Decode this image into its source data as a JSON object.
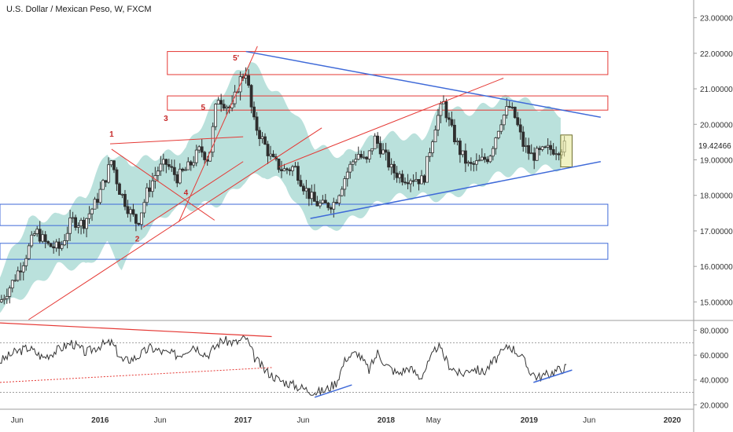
{
  "chart_data": {
    "type": "candlestick",
    "title": "U.S. Dollar / Mexican Peso, W, FXCM",
    "last_price": "19.42466",
    "colors": {
      "up": "#2e2e2e",
      "down": "#2e2e2e",
      "cloud": "#a9d9d3",
      "red_line": "#e53935",
      "blue_line": "#3f6ad8",
      "rsi": "#333333"
    },
    "price_axis": {
      "min": 14.5,
      "max": 23.5,
      "ticks": [
        "15.00000",
        "16.00000",
        "17.00000",
        "18.00000",
        "19.00000",
        "20.00000",
        "21.00000",
        "22.00000",
        "23.00000"
      ],
      "values": [
        15,
        16,
        17,
        18,
        19,
        20,
        21,
        22,
        23
      ]
    },
    "rsi_axis": {
      "min": 17,
      "max": 88,
      "ticks": [
        "20.0000",
        "40.0000",
        "60.0000",
        "80.0000"
      ],
      "values": [
        20,
        40,
        60,
        80
      ],
      "upper": 70,
      "lower": 30
    },
    "time_axis": {
      "labels": [
        "Jun",
        "2016",
        "Jun",
        "2017",
        "Jun",
        "2018",
        "May",
        "2019",
        "Jun",
        "2020"
      ],
      "positions": [
        2015.42,
        2016.0,
        2016.42,
        2017.0,
        2017.42,
        2018.0,
        2018.33,
        2019.0,
        2019.42,
        2020.0
      ],
      "range": [
        2015.3,
        2020.15
      ]
    },
    "price_path": [
      [
        2015.3,
        15.0
      ],
      [
        2015.38,
        15.5
      ],
      [
        2015.47,
        16.2
      ],
      [
        2015.55,
        17.0
      ],
      [
        2015.63,
        16.6
      ],
      [
        2015.72,
        16.5
      ],
      [
        2015.8,
        17.3
      ],
      [
        2015.88,
        17.2
      ],
      [
        2015.97,
        17.8
      ],
      [
        2016.03,
        18.4
      ],
      [
        2016.08,
        19.0
      ],
      [
        2016.13,
        18.2
      ],
      [
        2016.2,
        17.6
      ],
      [
        2016.26,
        17.2
      ],
      [
        2016.33,
        18.1
      ],
      [
        2016.4,
        18.7
      ],
      [
        2016.46,
        18.9
      ],
      [
        2016.54,
        18.5
      ],
      [
        2016.62,
        18.8
      ],
      [
        2016.7,
        19.3
      ],
      [
        2016.76,
        19.0
      ],
      [
        2016.82,
        20.8
      ],
      [
        2016.87,
        20.6
      ],
      [
        2016.92,
        20.4
      ],
      [
        2016.97,
        21.2
      ],
      [
        2017.02,
        21.5
      ],
      [
        2017.07,
        20.1
      ],
      [
        2017.13,
        19.6
      ],
      [
        2017.2,
        19.0
      ],
      [
        2017.28,
        18.7
      ],
      [
        2017.36,
        18.8
      ],
      [
        2017.43,
        18.2
      ],
      [
        2017.5,
        17.8
      ],
      [
        2017.56,
        17.7
      ],
      [
        2017.64,
        17.8
      ],
      [
        2017.72,
        18.6
      ],
      [
        2017.8,
        19.2
      ],
      [
        2017.86,
        18.9
      ],
      [
        2017.92,
        19.6
      ],
      [
        2017.98,
        19.2
      ],
      [
        2018.04,
        18.7
      ],
      [
        2018.12,
        18.5
      ],
      [
        2018.2,
        18.5
      ],
      [
        2018.26,
        18.4
      ],
      [
        2018.3,
        19.2
      ],
      [
        2018.35,
        20.1
      ],
      [
        2018.4,
        20.6
      ],
      [
        2018.45,
        19.9
      ],
      [
        2018.52,
        19.2
      ],
      [
        2018.58,
        18.8
      ],
      [
        2018.64,
        18.9
      ],
      [
        2018.72,
        19.1
      ],
      [
        2018.8,
        20.1
      ],
      [
        2018.86,
        20.5
      ],
      [
        2018.9,
        20.2
      ],
      [
        2018.96,
        19.4
      ],
      [
        2019.02,
        19.1
      ],
      [
        2019.08,
        19.2
      ],
      [
        2019.14,
        19.3
      ],
      [
        2019.2,
        19.3
      ],
      [
        2019.26,
        19.42
      ]
    ],
    "candle_step": 0.0192,
    "volatility_band": {
      "upper": [
        [
          2015.3,
          15.8
        ],
        [
          2015.5,
          17.3
        ],
        [
          2015.7,
          17.4
        ],
        [
          2015.9,
          18.0
        ],
        [
          2016.05,
          19.2
        ],
        [
          2016.2,
          18.9
        ],
        [
          2016.4,
          19.1
        ],
        [
          2016.6,
          19.3
        ],
        [
          2016.8,
          20.6
        ],
        [
          2016.95,
          21.4
        ],
        [
          2017.05,
          21.8
        ],
        [
          2017.2,
          21.0
        ],
        [
          2017.35,
          20.4
        ],
        [
          2017.5,
          19.4
        ],
        [
          2017.7,
          19.1
        ],
        [
          2017.9,
          19.6
        ],
        [
          2018.05,
          19.7
        ],
        [
          2018.25,
          19.6
        ],
        [
          2018.4,
          20.6
        ],
        [
          2018.55,
          20.3
        ],
        [
          2018.75,
          20.6
        ],
        [
          2018.9,
          20.8
        ],
        [
          2019.05,
          20.5
        ],
        [
          2019.22,
          20.3
        ]
      ],
      "lower": [
        [
          2015.3,
          14.8
        ],
        [
          2015.5,
          15.3
        ],
        [
          2015.7,
          16.0
        ],
        [
          2015.9,
          16.0
        ],
        [
          2016.05,
          16.6
        ],
        [
          2016.15,
          16.0
        ],
        [
          2016.3,
          16.9
        ],
        [
          2016.5,
          17.6
        ],
        [
          2016.7,
          17.7
        ],
        [
          2016.85,
          17.8
        ],
        [
          2017.0,
          18.4
        ],
        [
          2017.15,
          18.6
        ],
        [
          2017.3,
          18.3
        ],
        [
          2017.45,
          17.2
        ],
        [
          2017.6,
          17.0
        ],
        [
          2017.8,
          17.4
        ],
        [
          2018.0,
          17.9
        ],
        [
          2018.2,
          18.0
        ],
        [
          2018.4,
          17.9
        ],
        [
          2018.6,
          18.2
        ],
        [
          2018.8,
          18.6
        ],
        [
          2019.0,
          18.7
        ],
        [
          2019.22,
          18.8
        ]
      ]
    },
    "rsi_path": [
      [
        2015.3,
        55
      ],
      [
        2015.4,
        62
      ],
      [
        2015.5,
        66
      ],
      [
        2015.6,
        58
      ],
      [
        2015.7,
        64
      ],
      [
        2015.8,
        70
      ],
      [
        2015.9,
        62
      ],
      [
        2016.0,
        68
      ],
      [
        2016.08,
        70
      ],
      [
        2016.16,
        55
      ],
      [
        2016.25,
        58
      ],
      [
        2016.35,
        66
      ],
      [
        2016.45,
        62
      ],
      [
        2016.55,
        60
      ],
      [
        2016.65,
        68
      ],
      [
        2016.75,
        60
      ],
      [
        2016.85,
        72
      ],
      [
        2016.95,
        70
      ],
      [
        2017.02,
        74
      ],
      [
        2017.08,
        58
      ],
      [
        2017.15,
        48
      ],
      [
        2017.25,
        40
      ],
      [
        2017.35,
        36
      ],
      [
        2017.45,
        32
      ],
      [
        2017.52,
        30
      ],
      [
        2017.58,
        32
      ],
      [
        2017.65,
        38
      ],
      [
        2017.72,
        58
      ],
      [
        2017.8,
        62
      ],
      [
        2017.88,
        48
      ],
      [
        2017.94,
        62
      ],
      [
        2018.0,
        52
      ],
      [
        2018.08,
        45
      ],
      [
        2018.16,
        50
      ],
      [
        2018.24,
        42
      ],
      [
        2018.3,
        54
      ],
      [
        2018.36,
        68
      ],
      [
        2018.44,
        52
      ],
      [
        2018.52,
        44
      ],
      [
        2018.6,
        50
      ],
      [
        2018.68,
        46
      ],
      [
        2018.76,
        56
      ],
      [
        2018.86,
        68
      ],
      [
        2018.94,
        60
      ],
      [
        2019.0,
        48
      ],
      [
        2019.06,
        42
      ],
      [
        2019.12,
        44
      ],
      [
        2019.2,
        48
      ],
      [
        2019.26,
        50
      ]
    ],
    "resistance_zones": [
      [
        21.4,
        22.05
      ],
      [
        20.4,
        20.8
      ]
    ],
    "support_zones": [
      [
        17.15,
        17.75
      ],
      [
        16.2,
        16.65
      ]
    ],
    "wave_labels": [
      {
        "label": "1",
        "x": 2016.08,
        "y": 19.65
      },
      {
        "label": "2",
        "x": 2016.26,
        "y": 16.7
      },
      {
        "label": "3",
        "x": 2016.46,
        "y": 20.1
      },
      {
        "label": "4",
        "x": 2016.6,
        "y": 18.0
      },
      {
        "label": "5",
        "x": 2016.72,
        "y": 20.4
      },
      {
        "label": "5'",
        "x": 2016.95,
        "y": 21.8
      }
    ]
  }
}
